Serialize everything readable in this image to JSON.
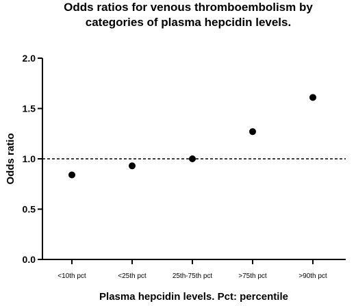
{
  "chart_data": {
    "type": "scatter",
    "title_lines": [
      "Odds ratios for venous thromboembolism by",
      "categories of plasma hepcidin levels."
    ],
    "xlabel": "Plasma hepcidin levels. Pct: percentile",
    "ylabel": "Odds ratio",
    "categories": [
      "<10th pct",
      "<25th pct",
      "25th-75th pct",
      ">75th pct",
      ">90th pct"
    ],
    "values": [
      0.84,
      0.93,
      1.0,
      1.27,
      1.61
    ],
    "ylim": [
      0.0,
      2.0
    ],
    "yticks": [
      "0.0",
      "0.5",
      "1.0",
      "1.5",
      "2.0"
    ],
    "reference_line": {
      "y": 1.0,
      "style": "dashed"
    },
    "grid": false,
    "legend": "none",
    "colors": {
      "points": "#000000",
      "axes": "#000000"
    }
  }
}
